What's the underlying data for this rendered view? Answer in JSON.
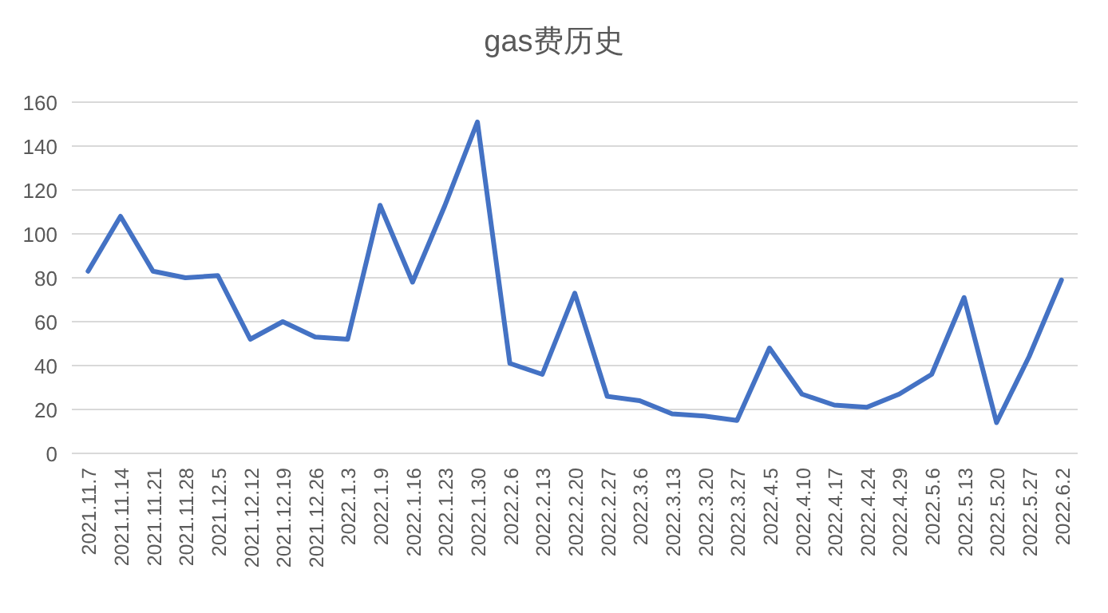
{
  "chart_data": {
    "type": "line",
    "title": "gas费历史",
    "categories": [
      "2021.11.7",
      "2021.11.14",
      "2021.11.21",
      "2021.11.28",
      "2021.12.5",
      "2021.12.12",
      "2021.12.19",
      "2021.12.26",
      "2022.1.3",
      "2022.1.9",
      "2022.1.16",
      "2022.1.23",
      "2022.1.30",
      "2022.2.6",
      "2022.2.13",
      "2022.2.20",
      "2022.2.27",
      "2022.3.6",
      "2022.3.13",
      "2022.3.20",
      "2022.3.27",
      "2022.4.5",
      "2022.4.10",
      "2022.4.17",
      "2022.4.24",
      "2022.4.29",
      "2022.5.6",
      "2022.5.13",
      "2022.5.20",
      "2022.5.27",
      "2022.6.2"
    ],
    "series": [
      {
        "color": "#4472c4",
        "values": [
          83,
          108,
          83,
          80,
          81,
          52,
          60,
          53,
          52,
          113,
          78,
          113,
          151,
          41,
          36,
          73,
          26,
          24,
          18,
          17,
          15,
          48,
          27,
          22,
          21,
          27,
          36,
          71,
          14,
          44,
          79
        ]
      }
    ],
    "ylim": [
      0,
      160
    ],
    "yticks": [
      0,
      20,
      40,
      60,
      80,
      100,
      120,
      140,
      160
    ],
    "grid": "y",
    "marker": "none",
    "line_style": "solid"
  }
}
